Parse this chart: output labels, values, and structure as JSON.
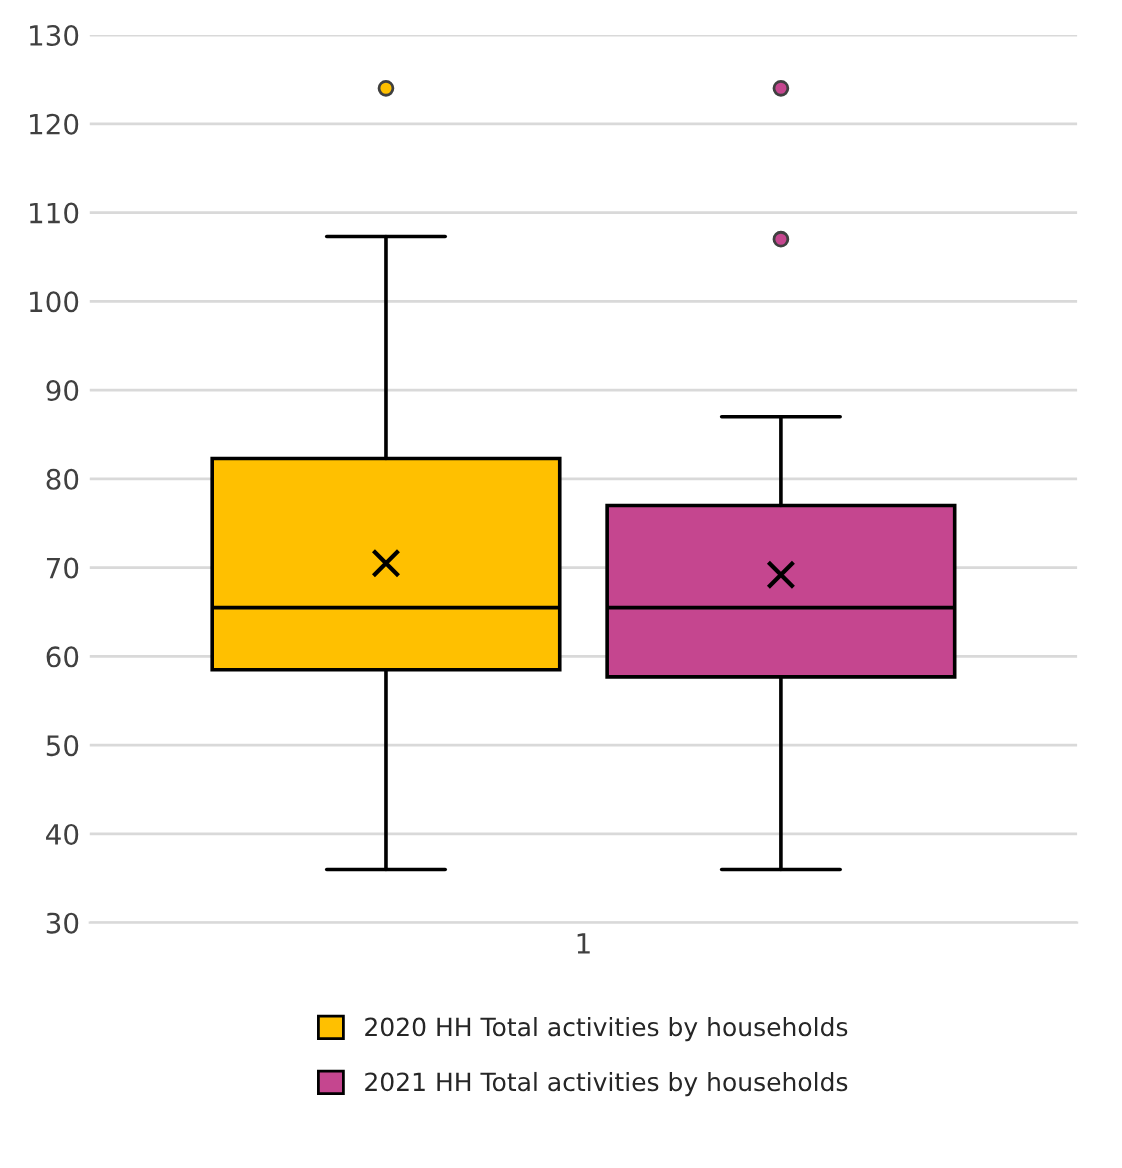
{
  "chart_data": {
    "type": "box",
    "categories": [
      "1"
    ],
    "series": [
      {
        "name": "2020 HH Total activities by households",
        "color": "#ffc000",
        "boxes": [
          {
            "low": 36,
            "q1": 58.5,
            "median": 65.5,
            "q3": 82.3,
            "high": 107.3,
            "mean": 70.5,
            "outliers": [
              124
            ]
          }
        ]
      },
      {
        "name": "2021 HH Total activities by households",
        "color": "#c5468f",
        "boxes": [
          {
            "low": 36,
            "q1": 57.7,
            "median": 65.5,
            "q3": 77,
            "high": 87,
            "mean": 69.2,
            "outliers": [
              124,
              107
            ]
          }
        ]
      }
    ],
    "ylim": [
      30,
      130
    ],
    "yticks": [
      30,
      40,
      50,
      60,
      70,
      80,
      90,
      100,
      110,
      120,
      130
    ],
    "grid": "y",
    "legend": "bottom"
  }
}
